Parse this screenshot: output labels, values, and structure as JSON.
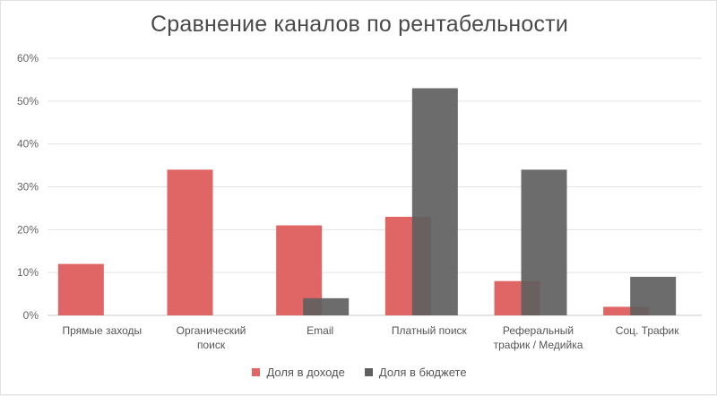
{
  "chart_data": {
    "type": "bar",
    "title": "Сравнение каналов по рентабельности",
    "categories": [
      [
        "Прямые заходы"
      ],
      [
        "Органический",
        "поиск"
      ],
      [
        "Email"
      ],
      [
        "Платный поиск"
      ],
      [
        "Реферальный",
        "трафик / Медийка"
      ],
      [
        "Соц. Трафик"
      ]
    ],
    "series": [
      {
        "name": "Доля в доходе",
        "color": "#e06666",
        "values": [
          12,
          34,
          21,
          23,
          8,
          2
        ]
      },
      {
        "name": "Доля в бюджете",
        "color": "#5f5f5f",
        "values": [
          0,
          0,
          4,
          53,
          34,
          9
        ]
      }
    ],
    "yticks": [
      "0%",
      "10%",
      "20%",
      "30%",
      "40%",
      "50%",
      "60%"
    ],
    "ylim": [
      0,
      60
    ],
    "grid": true,
    "legend_position": "bottom"
  }
}
